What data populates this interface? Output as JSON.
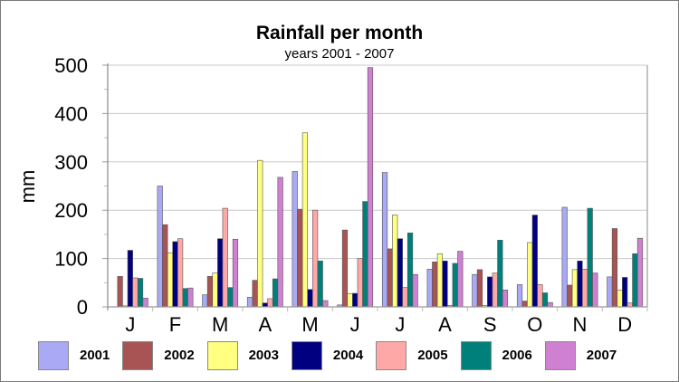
{
  "chart_data": {
    "type": "bar",
    "title": "Rainfall per month",
    "subtitle": "years 2001 - 2007",
    "xlabel": "",
    "ylabel": "mm",
    "ylim": [
      0,
      500
    ],
    "yticks": [
      "0",
      "100",
      "200",
      "300",
      "400",
      "500"
    ],
    "ytick_values": [
      0,
      100,
      200,
      300,
      400,
      500
    ],
    "grid": true,
    "legend_position": "bottom",
    "categories": [
      "J",
      "F",
      "M",
      "A",
      "M",
      "J",
      "J",
      "A",
      "S",
      "O",
      "N",
      "D"
    ],
    "series": [
      {
        "name": "2001",
        "color": "#a9a9f5",
        "values": [
          0,
          250,
          25,
          20,
          280,
          4,
          278,
          78,
          67,
          46,
          206,
          62
        ]
      },
      {
        "name": "2002",
        "color": "#a85454",
        "values": [
          63,
          170,
          63,
          55,
          202,
          159,
          120,
          93,
          77,
          12,
          45,
          162
        ]
      },
      {
        "name": "2003",
        "color": "#ffff80",
        "values": [
          2,
          112,
          70,
          303,
          360,
          27,
          190,
          110,
          3,
          133,
          77,
          35
        ]
      },
      {
        "name": "2004",
        "color": "#000080",
        "values": [
          117,
          135,
          141,
          8,
          36,
          28,
          141,
          95,
          62,
          190,
          95,
          61
        ]
      },
      {
        "name": "2005",
        "color": "#ffa8a8",
        "values": [
          60,
          141,
          204,
          17,
          200,
          100,
          40,
          3,
          70,
          46,
          78,
          8
        ]
      },
      {
        "name": "2006",
        "color": "#00807a",
        "values": [
          59,
          38,
          40,
          58,
          95,
          218,
          153,
          90,
          138,
          29,
          204,
          110
        ]
      },
      {
        "name": "2007",
        "color": "#d080d0",
        "values": [
          18,
          39,
          140,
          268,
          13,
          495,
          67,
          115,
          35,
          9,
          70,
          142
        ]
      }
    ]
  }
}
